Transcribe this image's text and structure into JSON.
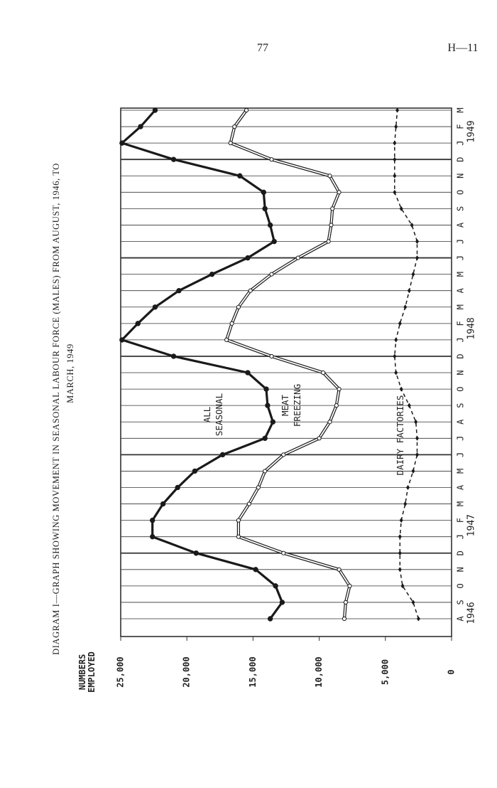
{
  "page_number": "77",
  "page_code": "H—11",
  "chart_data": {
    "type": "line",
    "title_lines": [
      "DIAGRAM I—GRAPH SHOWING MOVEMENT IN SEASONAL LABOUR FORCE (MALES) FROM AUGUST, 1946, TO",
      "MARCH, 1949"
    ],
    "y_label": "NUMBERS EMPLOYED",
    "categories": [
      "A",
      "S",
      "O",
      "N",
      "D",
      "J",
      "F",
      "M",
      "A",
      "M",
      "J",
      "J",
      "A",
      "S",
      "O",
      "N",
      "D",
      "J",
      "F",
      "M",
      "A",
      "M",
      "J",
      "J",
      "A",
      "S",
      "O",
      "N",
      "D",
      "J",
      "F",
      "M"
    ],
    "year_labels": [
      "1946",
      null,
      null,
      null,
      null,
      "1947",
      null,
      null,
      null,
      null,
      null,
      null,
      null,
      null,
      null,
      null,
      null,
      "1948",
      null,
      null,
      null,
      null,
      null,
      null,
      null,
      null,
      null,
      null,
      null,
      "1949",
      null,
      null
    ],
    "ylim": [
      0,
      25000
    ],
    "yticks": [
      0,
      {
        "value": 5000,
        "label": "5,000"
      },
      {
        "value": 10000,
        "label": "10,000"
      },
      {
        "value": 15000,
        "label": "15,000"
      },
      {
        "value": 20000,
        "label": "20,000"
      },
      {
        "value": 25000,
        "label": "25,000"
      }
    ],
    "series": [
      {
        "name": "ALL SEASONAL",
        "color": "#1a1a1a",
        "line_style": "thick",
        "values": [
          13700,
          12800,
          13300,
          14800,
          19300,
          22600,
          22600,
          21800,
          20700,
          19400,
          17300,
          14100,
          13500,
          13900,
          14000,
          15400,
          21000,
          24900,
          23700,
          22400,
          20600,
          18100,
          15400,
          13400,
          13700,
          14100,
          14200,
          16000,
          21000,
          24900,
          23500,
          22400
        ]
      },
      {
        "name": "MEAT FREEZING",
        "color": "#1a1a1a",
        "line_style": "double",
        "values": [
          8100,
          8000,
          7700,
          8500,
          12700,
          16100,
          16100,
          15300,
          14600,
          14100,
          12700,
          10000,
          9200,
          8700,
          8500,
          9700,
          13600,
          17000,
          16600,
          16100,
          15200,
          13600,
          11600,
          9300,
          9100,
          9000,
          8500,
          9200,
          13600,
          16700,
          16400,
          15500
        ]
      },
      {
        "name": "DAIRY FACTORIES",
        "color": "#1a1a1a",
        "line_style": "dashed",
        "values": [
          2500,
          2900,
          3700,
          3900,
          3900,
          3900,
          3800,
          3500,
          3300,
          2900,
          2600,
          2600,
          2700,
          3200,
          3800,
          4200,
          4300,
          4200,
          3900,
          3500,
          3200,
          2900,
          2600,
          2600,
          3000,
          3800,
          4300,
          4300,
          4300,
          4300,
          4200,
          4100
        ]
      }
    ]
  }
}
